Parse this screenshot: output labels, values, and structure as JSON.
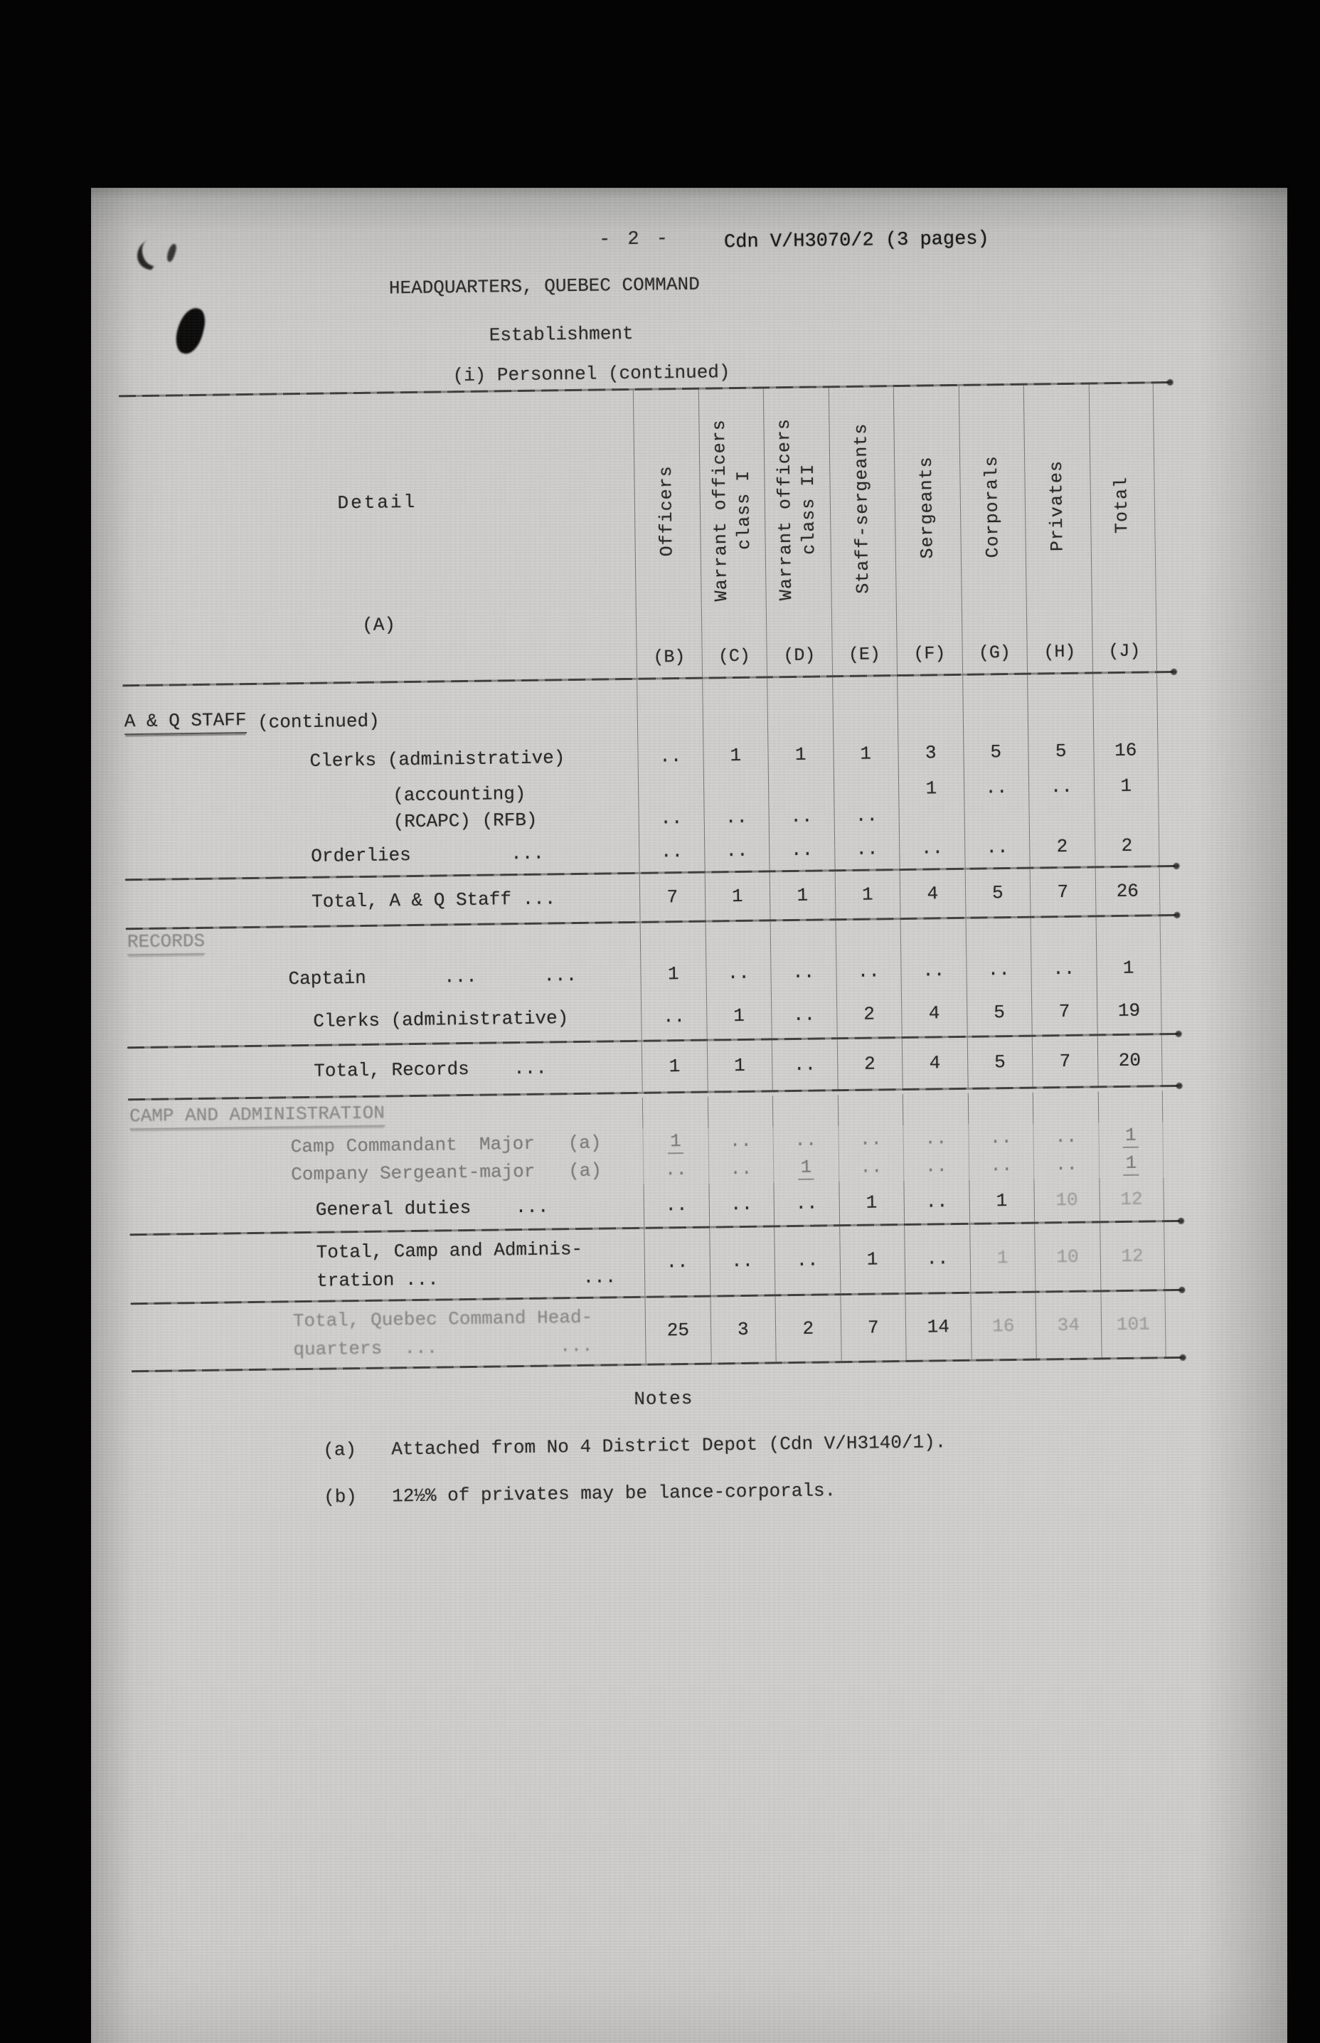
{
  "meta": {
    "page_number": "- 2 -",
    "doc_ref": "Cdn V/H3070/2 (3 pages)",
    "title": "HEADQUARTERS, QUEBEC COMMAND",
    "subtitle": "Establishment",
    "section_line": "(i) Personnel (continued)"
  },
  "table": {
    "detail_header": "Detail",
    "detail_letter": "(A)",
    "columns": [
      {
        "label": "Officers",
        "letter": "(B)"
      },
      {
        "label": "Warrant officers\nclass I",
        "letter": "(C)"
      },
      {
        "label": "Warrant officers\nclass II",
        "letter": "(D)"
      },
      {
        "label": "Staff-sergeants",
        "letter": "(E)"
      },
      {
        "label": "Sergeants",
        "letter": "(F)"
      },
      {
        "label": "Corporals",
        "letter": "(G)"
      },
      {
        "label": "Privates",
        "letter": "(H)"
      },
      {
        "label": "Total",
        "letter": "(J)"
      }
    ],
    "rows": [
      {
        "type": "section",
        "u": "A & Q STAFF",
        "rest": " (continued)",
        "ind": 0,
        "h": 76
      },
      {
        "type": "row",
        "label": "Clerks (administrative)",
        "ind": 2,
        "h": 64,
        "cells": [
          "..",
          "1",
          "1",
          "1",
          "3",
          "5",
          "5",
          "16"
        ]
      },
      {
        "type": "row",
        "label": "(accounting)",
        "ind": 3,
        "h": 36,
        "cells": [
          "",
          "",
          "",
          "",
          "1",
          "..",
          "..",
          "1"
        ]
      },
      {
        "type": "row",
        "label": "(RCAPC) (RFB)",
        "ind": 3,
        "h": 38,
        "cells": [
          "..",
          "..",
          "..",
          "..",
          "",
          "",
          "",
          ""
        ]
      },
      {
        "type": "row",
        "label": "Orderlies         ...",
        "ind": 2,
        "h": 56,
        "cells": [
          "..",
          "..",
          "..",
          "..",
          "..",
          "..",
          "2",
          "2"
        ]
      },
      {
        "type": "rule"
      },
      {
        "type": "total",
        "label": "Total, A & Q Staff ...",
        "ind": 2,
        "h": 66,
        "cells": [
          "7",
          "1",
          "1",
          "1",
          "4",
          "5",
          "7",
          "26"
        ]
      },
      {
        "type": "rule"
      },
      {
        "type": "section",
        "u": "RECORDS",
        "rest": "",
        "ind": 0,
        "h": 44,
        "lf": true
      },
      {
        "type": "row",
        "label": "Captain       ...      ...",
        "ind": 1,
        "h": 56,
        "cells": [
          "1",
          "..",
          "..",
          "..",
          "..",
          "..",
          "..",
          "1"
        ]
      },
      {
        "type": "row",
        "label": "Clerks (administrative)",
        "ind": 2,
        "h": 64,
        "cells": [
          "..",
          "1",
          "..",
          "2",
          "4",
          "5",
          "7",
          "19"
        ]
      },
      {
        "type": "rule"
      },
      {
        "type": "total",
        "label": "Total, Records    ...",
        "ind": 2,
        "h": 70,
        "cells": [
          "1",
          "1",
          "..",
          "2",
          "4",
          "5",
          "7",
          "20"
        ]
      },
      {
        "type": "rule",
        "heavy": true
      },
      {
        "type": "section",
        "u": "CAMP AND ADMINISTRATION",
        "rest": "",
        "ind": 0,
        "h": 44,
        "lf": true
      },
      {
        "type": "row",
        "label": "Camp Commandant  Major   (a)",
        "ind": 1,
        "h": 38,
        "rf": true,
        "cells": [
          "1",
          "..",
          "..",
          "..",
          "..",
          "..",
          "..",
          "1"
        ],
        "ucells": [
          0,
          7
        ]
      },
      {
        "type": "row",
        "label": "Company Sergeant-major   (a)",
        "ind": 1,
        "h": 40,
        "rf": true,
        "cells": [
          "..",
          "..",
          "1",
          "..",
          "..",
          "..",
          "..",
          "1"
        ],
        "ucells": [
          2,
          7
        ]
      },
      {
        "type": "row",
        "label": "General duties    ...",
        "ind": 2,
        "h": 60,
        "cells": [
          "..",
          "..",
          "..",
          "1",
          "..",
          "1",
          "10",
          "12"
        ],
        "fcells": [
          6,
          7
        ]
      },
      {
        "type": "rule"
      },
      {
        "type": "total",
        "label": "Total, Camp and Adminis-",
        "label2": "tration ...             ...",
        "ind": 2,
        "h": 94,
        "cells": [
          "..",
          "..",
          "..",
          "1",
          "..",
          "1",
          "10",
          "12"
        ],
        "fcells": [
          5,
          6,
          7
        ]
      },
      {
        "type": "rule"
      },
      {
        "type": "total",
        "label": "Total, Quebec Command Head-",
        "label2": "quarters  ...           ...",
        "ind": 1,
        "h": 92,
        "lf": true,
        "cells": [
          "25",
          "3",
          "2",
          "7",
          "14",
          "16",
          "34",
          "101"
        ],
        "fcells": [
          5,
          6,
          7
        ]
      },
      {
        "type": "rule",
        "heavy": true
      }
    ]
  },
  "notes": {
    "heading": "Notes",
    "items": [
      {
        "tag": "(a)",
        "text": "Attached from No 4 District Depot (Cdn V/H3140/1)."
      },
      {
        "tag": "(b)",
        "text": "12½% of privates may be lance-corporals."
      }
    ]
  }
}
